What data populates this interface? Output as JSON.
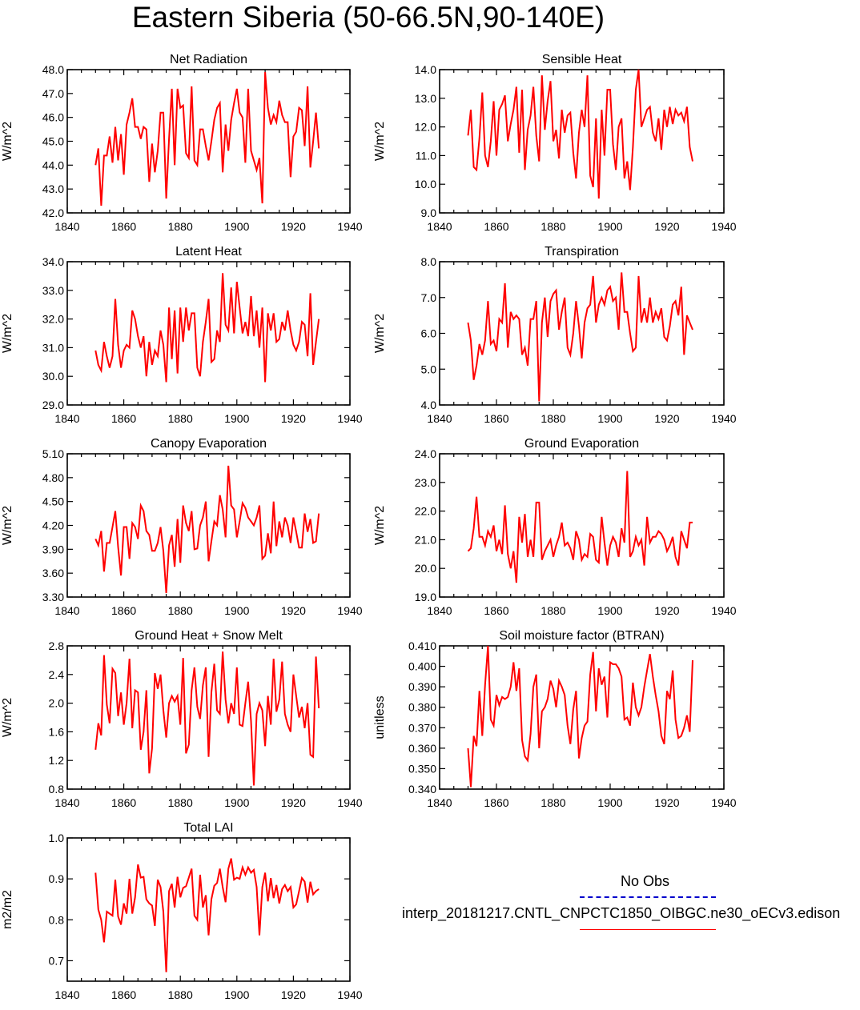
{
  "title": "Eastern Siberia (50-66.5N,90-140E)",
  "legend": {
    "entries": [
      {
        "label": "No Obs",
        "color": "#0000cc",
        "style": "dashed"
      },
      {
        "label": "interp_20181217.CNTL_CNPCTC1850_OIBGC.ne30_oECv3.edison",
        "color": "#ff0000",
        "style": "solid"
      }
    ]
  },
  "colors": {
    "series": "#ff0000",
    "axes": "#000000"
  },
  "chart_data": [
    {
      "type": "line",
      "title": "Net Radiation",
      "xlabel": "",
      "ylabel": "W/m^2",
      "xlim": [
        1840,
        1940
      ],
      "ylim": [
        42.0,
        48.0
      ],
      "xticks": [
        "1840",
        "1860",
        "1880",
        "1900",
        "1920",
        "1940"
      ],
      "yticks": [
        "42.0",
        "43.0",
        "44.0",
        "45.0",
        "46.0",
        "47.0",
        "48.0"
      ],
      "x_start": 1850,
      "series": [
        {
          "values": [
            44.0,
            44.7,
            42.3,
            44.4,
            44.4,
            45.2,
            44.1,
            45.6,
            44.2,
            45.3,
            43.6,
            45.7,
            46.2,
            46.8,
            45.6,
            45.6,
            45.1,
            45.6,
            45.5,
            43.3,
            44.9,
            43.7,
            44.6,
            46.2,
            46.2,
            42.6,
            45.1,
            47.2,
            44.0,
            47.2,
            46.4,
            46.5,
            44.5,
            44.3,
            47.3,
            44.2,
            44.0,
            45.5,
            45.5,
            44.8,
            44.2,
            45.0,
            45.9,
            46.4,
            46.6,
            43.7,
            45.7,
            44.6,
            45.9,
            46.6,
            47.2,
            46.2,
            46.0,
            44.1,
            47.2,
            44.6,
            44.2,
            43.8,
            44.3,
            42.4,
            47.9,
            46.4,
            45.7,
            46.1,
            45.8,
            46.7,
            46.1,
            45.8,
            45.8,
            43.5,
            45.2,
            45.4,
            46.4,
            46.3,
            44.8,
            47.3,
            43.9,
            45.0,
            46.2,
            44.7
          ]
        }
      ]
    },
    {
      "type": "line",
      "title": "Sensible Heat",
      "xlabel": "",
      "ylabel": "W/m^2",
      "xlim": [
        1840,
        1940
      ],
      "ylim": [
        9.0,
        14.0
      ],
      "xticks": [
        "1840",
        "1860",
        "1880",
        "1900",
        "1920",
        "1940"
      ],
      "yticks": [
        "9.0",
        "10.0",
        "11.0",
        "12.0",
        "13.0",
        "14.0"
      ],
      "x_start": 1850,
      "series": [
        {
          "values": [
            11.7,
            12.6,
            10.6,
            10.5,
            11.6,
            13.2,
            11.0,
            10.6,
            11.5,
            12.9,
            11.0,
            12.6,
            12.8,
            13.1,
            11.5,
            12.1,
            12.6,
            13.4,
            11.1,
            13.3,
            10.5,
            11.9,
            12.4,
            13.4,
            11.7,
            10.8,
            13.8,
            11.9,
            12.9,
            13.6,
            11.5,
            11.9,
            10.9,
            12.6,
            11.8,
            12.4,
            12.5,
            11.1,
            10.2,
            11.8,
            12.6,
            12.0,
            13.8,
            10.3,
            9.9,
            12.3,
            9.5,
            12.6,
            11.0,
            13.3,
            13.3,
            11.4,
            10.5,
            12.0,
            12.3,
            10.2,
            10.8,
            9.8,
            11.3,
            13.3,
            14.0,
            12.0,
            12.3,
            12.6,
            12.7,
            11.8,
            11.5,
            12.3,
            11.2,
            12.6,
            12.0,
            12.7,
            12.1,
            12.6,
            12.4,
            12.5,
            12.2,
            12.7,
            11.3,
            10.8
          ]
        }
      ]
    },
    {
      "type": "line",
      "title": "Latent Heat",
      "xlabel": "",
      "ylabel": "W/m^2",
      "xlim": [
        1840,
        1940
      ],
      "ylim": [
        29.0,
        34.0
      ],
      "xticks": [
        "1840",
        "1860",
        "1880",
        "1900",
        "1920",
        "1940"
      ],
      "yticks": [
        "29.0",
        "30.0",
        "31.0",
        "32.0",
        "33.0",
        "34.0"
      ],
      "x_start": 1850,
      "series": [
        {
          "values": [
            30.9,
            30.4,
            30.2,
            31.2,
            30.7,
            30.3,
            30.7,
            32.7,
            31.1,
            30.3,
            30.9,
            31.1,
            31.0,
            32.3,
            32.0,
            31.4,
            31.0,
            31.4,
            30.0,
            31.2,
            30.4,
            30.9,
            30.7,
            31.6,
            31.1,
            29.8,
            32.4,
            30.6,
            32.3,
            30.1,
            32.4,
            31.2,
            32.4,
            31.6,
            32.2,
            32.2,
            30.3,
            30.0,
            31.2,
            31.9,
            32.7,
            30.5,
            30.6,
            31.6,
            31.2,
            33.6,
            31.8,
            31.6,
            33.1,
            31.5,
            33.3,
            32.4,
            31.5,
            31.9,
            31.4,
            32.8,
            31.4,
            32.3,
            31.0,
            32.4,
            29.8,
            32.2,
            31.6,
            32.2,
            31.2,
            31.3,
            31.9,
            31.6,
            32.3,
            31.6,
            31.1,
            30.9,
            31.2,
            31.9,
            31.8,
            30.7,
            32.9,
            30.4,
            31.2,
            32.0
          ]
        }
      ]
    },
    {
      "type": "line",
      "title": "Transpiration",
      "xlabel": "",
      "ylabel": "W/m^2",
      "xlim": [
        1840,
        1940
      ],
      "ylim": [
        4.0,
        8.0
      ],
      "xticks": [
        "1840",
        "1860",
        "1880",
        "1900",
        "1920",
        "1940"
      ],
      "yticks": [
        "4.0",
        "5.0",
        "6.0",
        "7.0",
        "8.0"
      ],
      "x_start": 1850,
      "series": [
        {
          "values": [
            6.3,
            5.8,
            4.7,
            5.1,
            5.7,
            5.4,
            5.8,
            6.9,
            5.7,
            5.8,
            5.5,
            6.4,
            6.3,
            7.4,
            5.6,
            6.6,
            6.4,
            6.5,
            6.4,
            5.4,
            5.6,
            5.1,
            6.4,
            6.4,
            6.9,
            4.1,
            6.3,
            7.0,
            5.9,
            6.9,
            7.1,
            7.2,
            6.1,
            6.6,
            7.0,
            5.6,
            5.4,
            6.0,
            6.9,
            6.2,
            5.3,
            6.3,
            6.7,
            6.8,
            7.6,
            6.3,
            6.8,
            7.0,
            6.8,
            7.2,
            7.3,
            6.9,
            7.0,
            6.1,
            7.7,
            6.6,
            6.6,
            6.0,
            5.5,
            5.6,
            7.6,
            6.3,
            6.7,
            6.3,
            7.0,
            6.3,
            6.6,
            6.4,
            6.7,
            5.9,
            5.8,
            6.2,
            6.8,
            6.9,
            6.5,
            7.3,
            5.4,
            6.5,
            6.3,
            6.1
          ]
        }
      ]
    },
    {
      "type": "line",
      "title": "Canopy Evaporation",
      "xlabel": "",
      "ylabel": "W/m^2",
      "xlim": [
        1840,
        1940
      ],
      "ylim": [
        3.3,
        5.1
      ],
      "xticks": [
        "1840",
        "1860",
        "1880",
        "1900",
        "1920",
        "1940"
      ],
      "yticks": [
        "3.30",
        "3.60",
        "3.90",
        "4.20",
        "4.50",
        "4.80",
        "5.10"
      ],
      "x_start": 1850,
      "series": [
        {
          "values": [
            4.03,
            3.95,
            4.13,
            3.62,
            3.98,
            3.98,
            4.18,
            4.38,
            3.93,
            3.57,
            4.18,
            4.18,
            3.78,
            4.23,
            4.18,
            4.03,
            4.45,
            4.38,
            4.13,
            4.08,
            3.88,
            3.88,
            3.98,
            4.18,
            3.88,
            3.35,
            3.95,
            4.08,
            3.68,
            4.28,
            3.73,
            4.45,
            4.23,
            4.13,
            4.38,
            3.9,
            3.91,
            4.2,
            4.3,
            4.5,
            3.75,
            4.0,
            4.25,
            4.2,
            4.58,
            4.4,
            4.05,
            4.95,
            4.45,
            4.4,
            4.05,
            4.25,
            4.48,
            4.42,
            4.3,
            4.25,
            4.2,
            4.3,
            4.45,
            3.78,
            3.82,
            4.1,
            3.85,
            4.5,
            3.94,
            4.25,
            4.05,
            4.3,
            4.2,
            3.98,
            4.3,
            4.12,
            3.92,
            3.92,
            4.35,
            4.12,
            4.28,
            3.98,
            4.0,
            4.35
          ]
        }
      ]
    },
    {
      "type": "line",
      "title": "Ground Evaporation",
      "xlabel": "",
      "ylabel": "W/m^2",
      "xlim": [
        1840,
        1940
      ],
      "ylim": [
        19.0,
        24.0
      ],
      "xticks": [
        "1840",
        "1860",
        "1880",
        "1900",
        "1920",
        "1940"
      ],
      "yticks": [
        "19.0",
        "20.0",
        "21.0",
        "22.0",
        "23.0",
        "24.0"
      ],
      "x_start": 1850,
      "series": [
        {
          "values": [
            20.6,
            20.7,
            21.4,
            22.5,
            21.1,
            21.1,
            20.8,
            21.3,
            21.1,
            21.5,
            20.6,
            21.0,
            20.5,
            22.2,
            20.5,
            20.0,
            20.6,
            19.5,
            21.8,
            20.9,
            21.9,
            20.4,
            21.0,
            20.4,
            22.3,
            22.3,
            20.3,
            20.6,
            20.8,
            21.0,
            20.4,
            20.8,
            21.1,
            21.6,
            20.8,
            20.9,
            20.7,
            20.3,
            21.3,
            21.0,
            20.3,
            20.5,
            20.4,
            21.2,
            21.1,
            20.3,
            20.2,
            21.8,
            20.9,
            20.1,
            20.8,
            21.1,
            20.9,
            20.4,
            21.4,
            20.9,
            23.4,
            20.4,
            20.6,
            21.1,
            20.8,
            21.0,
            20.1,
            21.8,
            20.9,
            21.1,
            21.1,
            21.3,
            21.2,
            21.0,
            20.6,
            20.8,
            21.1,
            20.4,
            20.1,
            21.3,
            21.0,
            20.7,
            21.6,
            21.6
          ]
        }
      ]
    },
    {
      "type": "line",
      "title": "Ground Heat + Snow Melt",
      "xlabel": "",
      "ylabel": "W/m^2",
      "xlim": [
        1840,
        1940
      ],
      "ylim": [
        0.8,
        2.8
      ],
      "xticks": [
        "1840",
        "1860",
        "1880",
        "1900",
        "1920",
        "1940"
      ],
      "yticks": [
        "0.8",
        "1.2",
        "1.6",
        "2.0",
        "2.4",
        "2.8"
      ],
      "x_start": 1850,
      "series": [
        {
          "values": [
            1.35,
            1.72,
            1.55,
            2.67,
            1.98,
            1.72,
            2.48,
            2.42,
            1.82,
            2.15,
            1.7,
            2.0,
            2.62,
            1.65,
            2.18,
            2.15,
            1.35,
            1.6,
            2.18,
            1.02,
            1.37,
            2.42,
            2.2,
            2.4,
            1.9,
            1.52,
            2.0,
            2.1,
            2.02,
            2.1,
            1.7,
            2.63,
            1.3,
            1.42,
            2.18,
            2.5,
            1.95,
            1.78,
            2.25,
            2.5,
            1.25,
            2.15,
            2.55,
            1.9,
            1.85,
            2.72,
            2.05,
            1.72,
            2.0,
            1.85,
            2.5,
            1.7,
            1.68,
            2.0,
            2.3,
            1.75,
            0.85,
            1.85,
            2.0,
            1.9,
            1.4,
            2.1,
            1.7,
            2.62,
            1.88,
            2.05,
            2.58,
            1.85,
            1.7,
            1.6,
            2.4,
            2.1,
            1.8,
            1.95,
            1.65,
            2.0,
            1.28,
            1.25,
            2.65,
            1.93
          ]
        }
      ]
    },
    {
      "type": "line",
      "title": "Soil moisture factor (BTRAN)",
      "xlabel": "",
      "ylabel": "unitless",
      "xlim": [
        1840,
        1940
      ],
      "ylim": [
        0.34,
        0.41
      ],
      "xticks": [
        "1840",
        "1860",
        "1880",
        "1900",
        "1920",
        "1940"
      ],
      "yticks": [
        "0.340",
        "0.350",
        "0.360",
        "0.370",
        "0.380",
        "0.390",
        "0.400",
        "0.410"
      ],
      "x_start": 1850,
      "series": [
        {
          "values": [
            0.36,
            0.341,
            0.366,
            0.361,
            0.388,
            0.366,
            0.391,
            0.41,
            0.374,
            0.371,
            0.386,
            0.381,
            0.385,
            0.384,
            0.385,
            0.39,
            0.402,
            0.388,
            0.399,
            0.364,
            0.356,
            0.354,
            0.367,
            0.39,
            0.396,
            0.36,
            0.378,
            0.38,
            0.384,
            0.393,
            0.389,
            0.38,
            0.393,
            0.39,
            0.386,
            0.371,
            0.362,
            0.379,
            0.388,
            0.355,
            0.365,
            0.371,
            0.373,
            0.396,
            0.407,
            0.378,
            0.399,
            0.391,
            0.395,
            0.375,
            0.402,
            0.401,
            0.401,
            0.399,
            0.395,
            0.374,
            0.375,
            0.371,
            0.392,
            0.38,
            0.376,
            0.38,
            0.39,
            0.398,
            0.406,
            0.395,
            0.386,
            0.378,
            0.366,
            0.362,
            0.388,
            0.384,
            0.398,
            0.374,
            0.365,
            0.366,
            0.37,
            0.376,
            0.368,
            0.403
          ]
        }
      ]
    },
    {
      "type": "line",
      "title": "Total LAI",
      "xlabel": "",
      "ylabel": "m2/m2",
      "xlim": [
        1840,
        1940
      ],
      "ylim": [
        0.65,
        1.0
      ],
      "xticks": [
        "1840",
        "1860",
        "1880",
        "1900",
        "1920",
        "1940"
      ],
      "yticks": [
        "0.7",
        "0.8",
        "0.9",
        "1.0"
      ],
      "x_start": 1850,
      "series": [
        {
          "values": [
            0.915,
            0.825,
            0.8,
            0.745,
            0.82,
            0.815,
            0.81,
            0.898,
            0.808,
            0.788,
            0.84,
            0.815,
            0.9,
            0.815,
            0.855,
            0.935,
            0.903,
            0.905,
            0.85,
            0.84,
            0.835,
            0.785,
            0.898,
            0.88,
            0.82,
            0.672,
            0.87,
            0.888,
            0.83,
            0.905,
            0.855,
            0.878,
            0.882,
            0.903,
            0.925,
            0.81,
            0.8,
            0.91,
            0.83,
            0.86,
            0.762,
            0.85,
            0.883,
            0.89,
            0.925,
            0.88,
            0.843,
            0.925,
            0.95,
            0.898,
            0.903,
            0.9,
            0.928,
            0.91,
            0.928,
            0.915,
            0.922,
            0.88,
            0.762,
            0.88,
            0.915,
            0.845,
            0.902,
            0.853,
            0.885,
            0.84,
            0.875,
            0.885,
            0.87,
            0.88,
            0.83,
            0.838,
            0.87,
            0.902,
            0.893,
            0.842,
            0.893,
            0.862,
            0.87,
            0.875
          ]
        }
      ]
    }
  ]
}
